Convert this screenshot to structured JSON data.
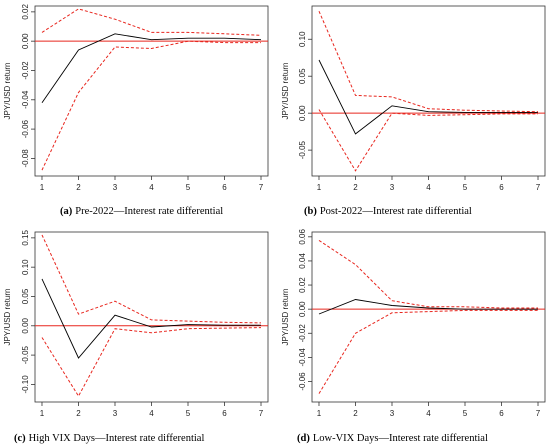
{
  "chart_data": [
    {
      "type": "line",
      "caption_label": "(a)",
      "caption_text": "Pre-2022—Interest rate differential",
      "ylabel": "JPY/USD return",
      "x": [
        1,
        2,
        3,
        4,
        5,
        6,
        7
      ],
      "ylim": [
        -0.092,
        0.024
      ],
      "yticks": [
        -0.08,
        -0.06,
        -0.04,
        -0.02,
        0.0,
        0.02
      ],
      "series": [
        {
          "role": "response",
          "color": "#000000",
          "values": [
            -0.042,
            -0.006,
            0.005,
            0.001,
            0.002,
            0.002,
            0.001
          ]
        },
        {
          "role": "upper_band",
          "color": "#e8261e",
          "values": [
            0.006,
            0.022,
            0.015,
            0.006,
            0.006,
            0.005,
            0.004
          ]
        },
        {
          "role": "lower_band",
          "color": "#e8261e",
          "values": [
            -0.088,
            -0.035,
            -0.004,
            -0.005,
            0.0,
            -0.001,
            -0.001
          ]
        }
      ],
      "reference_line": {
        "y": 0,
        "color": "#e8261e"
      }
    },
    {
      "type": "line",
      "caption_label": "(b)",
      "caption_text": "Post-2022—Interest rate differential",
      "ylabel": "JPY/USD return",
      "x": [
        1,
        2,
        3,
        4,
        5,
        6,
        7
      ],
      "ylim": [
        -0.085,
        0.145
      ],
      "yticks": [
        -0.05,
        0.0,
        0.05,
        0.1
      ],
      "series": [
        {
          "role": "response",
          "color": "#000000",
          "values": [
            0.072,
            -0.028,
            0.01,
            0.002,
            0.001,
            0.001,
            0.001
          ]
        },
        {
          "role": "upper_band",
          "color": "#e8261e",
          "values": [
            0.138,
            0.024,
            0.022,
            0.006,
            0.004,
            0.003,
            0.002
          ]
        },
        {
          "role": "lower_band",
          "color": "#e8261e",
          "values": [
            0.005,
            -0.078,
            0.0,
            -0.003,
            -0.002,
            -0.001,
            -0.001
          ]
        }
      ],
      "reference_line": {
        "y": 0,
        "color": "#e8261e"
      }
    },
    {
      "type": "line",
      "caption_label": "(c)",
      "caption_text": "High VIX Days—Interest rate differential",
      "ylabel": "JPY/USD return",
      "x": [
        1,
        2,
        3,
        4,
        5,
        6,
        7
      ],
      "ylim": [
        -0.13,
        0.16
      ],
      "yticks": [
        -0.1,
        -0.05,
        0.0,
        0.05,
        0.1,
        0.15
      ],
      "series": [
        {
          "role": "response",
          "color": "#000000",
          "values": [
            0.08,
            -0.055,
            0.018,
            -0.002,
            0.002,
            0.001,
            0.001
          ]
        },
        {
          "role": "upper_band",
          "color": "#e8261e",
          "values": [
            0.155,
            0.02,
            0.042,
            0.01,
            0.008,
            0.006,
            0.005
          ]
        },
        {
          "role": "lower_band",
          "color": "#e8261e",
          "values": [
            -0.02,
            -0.12,
            -0.005,
            -0.012,
            -0.005,
            -0.004,
            -0.003
          ]
        }
      ],
      "reference_line": {
        "y": 0,
        "color": "#e8261e"
      }
    },
    {
      "type": "line",
      "caption_label": "(d)",
      "caption_text": "Low-VIX Days—Interest rate differential",
      "ylabel": "JPY/USD return",
      "x": [
        1,
        2,
        3,
        4,
        5,
        6,
        7
      ],
      "ylim": [
        -0.077,
        0.064
      ],
      "yticks": [
        -0.06,
        -0.04,
        -0.02,
        0.0,
        0.02,
        0.04,
        0.06
      ],
      "series": [
        {
          "role": "response",
          "color": "#000000",
          "values": [
            -0.004,
            0.008,
            0.003,
            0.001,
            0.0,
            0.0,
            0.0
          ]
        },
        {
          "role": "upper_band",
          "color": "#e8261e",
          "values": [
            0.057,
            0.037,
            0.007,
            0.002,
            0.002,
            0.001,
            0.001
          ]
        },
        {
          "role": "lower_band",
          "color": "#e8261e",
          "values": [
            -0.07,
            -0.02,
            -0.003,
            -0.002,
            -0.001,
            -0.001,
            -0.001
          ]
        }
      ],
      "reference_line": {
        "y": 0,
        "color": "#e8261e"
      }
    }
  ]
}
